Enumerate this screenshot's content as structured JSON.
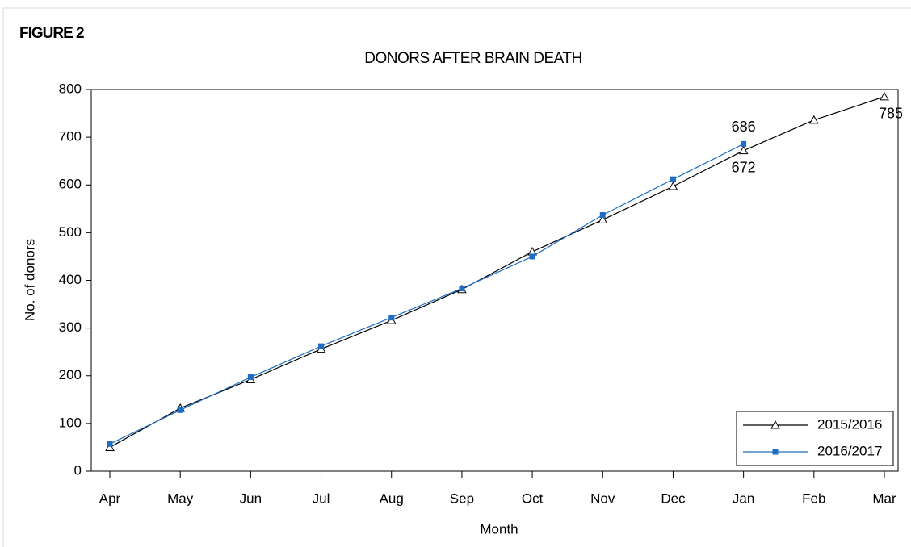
{
  "chart_data": {
    "type": "line",
    "figure_label": "FIGURE 2",
    "title": "DONORS AFTER BRAIN DEATH",
    "x_label": "Month",
    "y_label": "No. of donors",
    "categories": [
      "Apr",
      "May",
      "Jun",
      "Jul",
      "Aug",
      "Sep",
      "Oct",
      "Nov",
      "Dec",
      "Jan",
      "Feb",
      "Mar"
    ],
    "series": [
      {
        "name": "2015/2016",
        "color": "#000000",
        "marker": "open-triangle",
        "values": [
          50,
          132,
          192,
          256,
          316,
          381,
          460,
          527,
          597,
          672,
          736,
          785
        ],
        "value_labels": [
          null,
          null,
          null,
          null,
          null,
          null,
          null,
          null,
          null,
          "672",
          null,
          "785"
        ]
      },
      {
        "name": "2016/2017",
        "color": "#1f6ec4",
        "marker": "filled-square",
        "values": [
          57,
          128,
          197,
          262,
          322,
          383,
          450,
          537,
          612,
          686,
          null,
          null
        ],
        "value_labels": [
          null,
          null,
          null,
          null,
          null,
          null,
          null,
          null,
          null,
          "686",
          null,
          null
        ]
      }
    ],
    "ylim": [
      0,
      800
    ],
    "yticks": [
      0,
      100,
      200,
      300,
      400,
      500,
      600,
      700,
      800
    ],
    "grid": false,
    "legend": "lower right"
  }
}
